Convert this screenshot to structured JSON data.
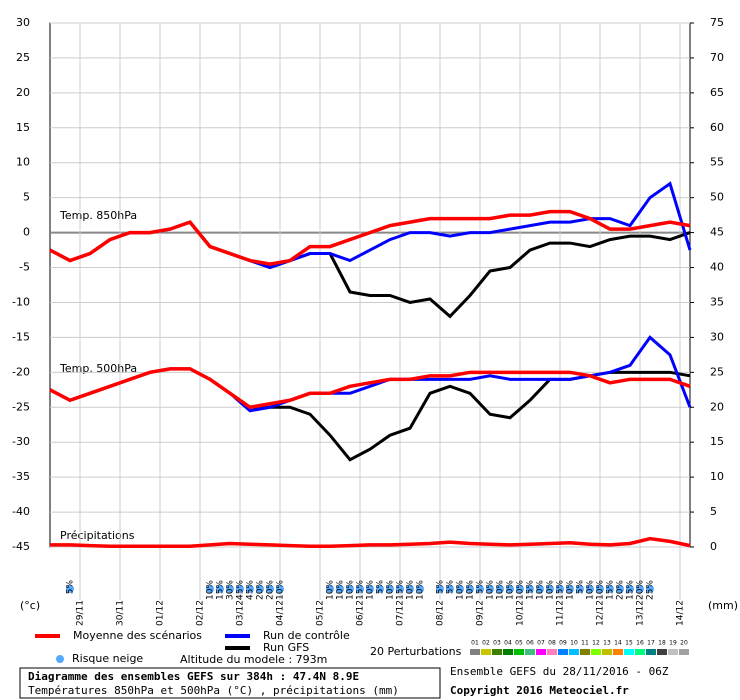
{
  "chart_data": {
    "type": "line",
    "annotations": {
      "t850": "Temp. 850hPa",
      "t500": "Temp. 500hPa",
      "precip": "Précipitations"
    },
    "y_unit": "(°c)",
    "y2_unit": "(mm)",
    "xlim": [
      0,
      384
    ],
    "xticks": [
      {
        "value": 18,
        "label": "29/11"
      },
      {
        "value": 42,
        "label": "30/11"
      },
      {
        "value": 66,
        "label": "01/12"
      },
      {
        "value": 90,
        "label": "02/12"
      },
      {
        "value": 114,
        "label": "03/12"
      },
      {
        "value": 138,
        "label": "04/12"
      },
      {
        "value": 162,
        "label": "05/12"
      },
      {
        "value": 186,
        "label": "06/12"
      },
      {
        "value": 210,
        "label": "07/12"
      },
      {
        "value": 234,
        "label": "08/12"
      },
      {
        "value": 258,
        "label": "09/12"
      },
      {
        "value": 282,
        "label": "10/12"
      },
      {
        "value": 306,
        "label": "11/12"
      },
      {
        "value": 330,
        "label": "12/12"
      },
      {
        "value": 354,
        "label": "13/12"
      },
      {
        "value": 378,
        "label": "14/12"
      }
    ],
    "ylim": [
      -45,
      30
    ],
    "yticks": [
      -45,
      -40,
      -35,
      -30,
      -25,
      -20,
      -15,
      -10,
      -5,
      0,
      5,
      10,
      15,
      20,
      25,
      30
    ],
    "y2lim": [
      0,
      75
    ],
    "y2ticks": [
      0,
      5,
      10,
      15,
      20,
      25,
      30,
      35,
      40,
      45,
      50,
      55,
      60,
      65,
      70,
      75
    ],
    "grid": true,
    "x": [
      0,
      12,
      24,
      36,
      48,
      60,
      72,
      84,
      96,
      108,
      120,
      132,
      144,
      156,
      168,
      180,
      192,
      204,
      216,
      228,
      240,
      252,
      264,
      276,
      288,
      300,
      312,
      324,
      336,
      348,
      360,
      372,
      384
    ],
    "series": [
      {
        "name": "Moyenne des scénarios",
        "color": "#ff0000",
        "width": 3.5,
        "values": [
          -2.5,
          -4,
          -3,
          -1,
          0,
          0,
          0.5,
          1.5,
          -2,
          -3,
          -4,
          -4.5,
          -4,
          -2,
          -2,
          -1,
          0,
          1,
          1.5,
          2,
          2,
          2,
          2,
          2.5,
          2.5,
          3,
          3,
          2,
          0.5,
          0.5,
          1,
          1.5,
          1
        ]
      },
      {
        "name": "Run de contrôle",
        "color": "#0000ff",
        "width": 3,
        "values": [
          -2.5,
          -4,
          -3,
          -1,
          0,
          0,
          0.5,
          1.5,
          -2,
          -3,
          -4,
          -5,
          -4,
          -3,
          -3,
          -4,
          -2.5,
          -1,
          0,
          0,
          -0.5,
          0,
          0,
          0.5,
          1,
          1.5,
          1.5,
          2,
          2,
          1,
          5,
          7,
          -2.5
        ]
      },
      {
        "name": "Run GFS",
        "color": "#000000",
        "width": 3,
        "values": [
          -2.5,
          -4,
          -3,
          -1,
          0,
          0,
          0.5,
          1.5,
          -2,
          -3,
          -4,
          -5,
          -4,
          -3,
          -3,
          -8.5,
          -9,
          -9,
          -10,
          -9.5,
          -12,
          -9,
          -5.5,
          -5,
          -2.5,
          -1.5,
          -1.5,
          -2,
          -1,
          -0.5,
          -0.5,
          -1,
          0
        ]
      },
      {
        "name": "Moyenne des scénarios",
        "color": "#ff0000",
        "width": 3.5,
        "values": [
          -22.5,
          -24,
          -23,
          -22,
          -21,
          -20,
          -19.5,
          -19.5,
          -21,
          -23,
          -25,
          -24.5,
          -24,
          -23,
          -23,
          -22,
          -21.5,
          -21,
          -21,
          -20.5,
          -20.5,
          -20,
          -20,
          -20,
          -20,
          -20,
          -20,
          -20.5,
          -21.5,
          -21,
          -21,
          -21,
          -22
        ]
      },
      {
        "name": "Run de contrôle",
        "color": "#0000ff",
        "width": 3,
        "values": [
          -22.5,
          -24,
          -23,
          -22,
          -21,
          -20,
          -19.5,
          -19.5,
          -21,
          -23,
          -25.5,
          -25,
          -24,
          -23,
          -23,
          -23,
          -22,
          -21,
          -21,
          -21,
          -21,
          -21,
          -20.5,
          -21,
          -21,
          -21,
          -21,
          -20.5,
          -20,
          -19,
          -15,
          -17.5,
          -25
        ]
      },
      {
        "name": "Run GFS",
        "color": "#000000",
        "width": 3,
        "values": [
          -22.5,
          -24,
          -23,
          -22,
          -21,
          -20,
          -19.5,
          -19.5,
          -21,
          -23,
          -25,
          -25,
          -25,
          -26,
          -29,
          -32.5,
          -31,
          -29,
          -28,
          -23,
          -22,
          -23,
          -26,
          -26.5,
          -24,
          -21,
          -21,
          -20.5,
          -20,
          -20,
          -20,
          -20,
          -20.5
        ]
      },
      {
        "name": "Moyenne des scénarios",
        "color": "#ff0000",
        "width": 3.5,
        "axis": "y2",
        "values": [
          0.3,
          0.3,
          0.2,
          0.1,
          0.1,
          0.1,
          0.1,
          0.1,
          0.3,
          0.5,
          0.4,
          0.3,
          0.2,
          0.1,
          0.1,
          0.2,
          0.3,
          0.3,
          0.4,
          0.5,
          0.7,
          0.5,
          0.4,
          0.3,
          0.4,
          0.5,
          0.6,
          0.4,
          0.3,
          0.5,
          1.2,
          0.8,
          0.2
        ]
      }
    ],
    "snow_risk": {
      "label": "Risque neige",
      "color": "#55aaff",
      "x": [
        12,
        96,
        102,
        108,
        114,
        120,
        126,
        132,
        138,
        168,
        174,
        180,
        186,
        192,
        198,
        204,
        210,
        216,
        222,
        234,
        240,
        246,
        252,
        258,
        264,
        270,
        276,
        282,
        288,
        294,
        300,
        306,
        312,
        318,
        324,
        330,
        336,
        342,
        348,
        354,
        360
      ],
      "labels": [
        "5%",
        "10%",
        "15%",
        "30%",
        "45%",
        "45%",
        "20%",
        "20%",
        "10%",
        "10%",
        "10%",
        "10%",
        "15%",
        "10%",
        "5%",
        "10%",
        "15%",
        "10%",
        "10%",
        "5%",
        "5%",
        "10%",
        "10%",
        "5%",
        "10%",
        "10%",
        "10%",
        "10%",
        "15%",
        "10%",
        "10%",
        "15%",
        "10%",
        "5%",
        "10%",
        "10%",
        "15%",
        "20%",
        "15%",
        "20%",
        "25%"
      ]
    },
    "altitude": "Altitude du modele : 793m",
    "perturbations": {
      "label": "20 Perturbations",
      "ids": [
        "01",
        "02",
        "03",
        "04",
        "05",
        "06",
        "07",
        "08",
        "09",
        "10",
        "11",
        "12",
        "13",
        "14",
        "15",
        "16",
        "17",
        "18",
        "19",
        "20"
      ],
      "colors": [
        "#808080",
        "#c8c800",
        "#408000",
        "#008000",
        "#00c000",
        "#40c080",
        "#ff00ff",
        "#ff80c0",
        "#0080ff",
        "#00c0ff",
        "#808000",
        "#80ff00",
        "#c0c000",
        "#ff8000",
        "#00ffff",
        "#00ff80",
        "#008080",
        "#404040",
        "#c0c0c0",
        "#a0a0a0"
      ]
    },
    "footer": {
      "title": "Diagramme des ensembles GEFS sur 384h : 47.4N 8.9E",
      "subtitle": "Températures 850hPa et 500hPa (°C) , précipitations (mm)",
      "run": "Ensemble GEFS du 28/11/2016 - 06Z",
      "copyright": "Copyright 2016 Meteociel.fr"
    }
  }
}
